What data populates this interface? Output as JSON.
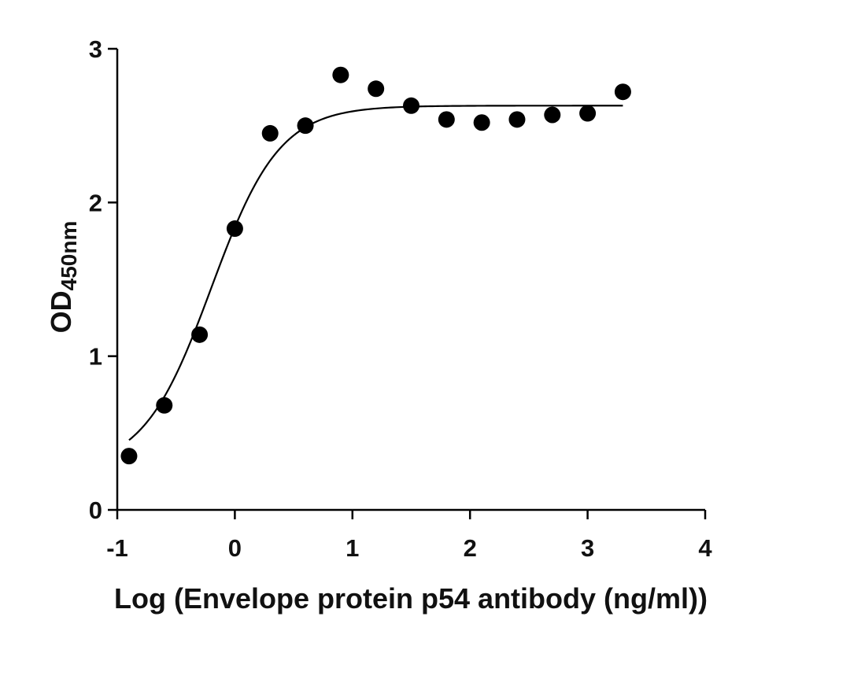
{
  "chart_data": {
    "type": "scatter",
    "xlabel": "Log (Envelope protein p54 antibody (ng/ml))",
    "ylabel_main": "OD",
    "ylabel_sub": "450nm",
    "xlim": [
      -1,
      4
    ],
    "ylim": [
      0,
      3
    ],
    "x_ticks": [
      "-1",
      "0",
      "1",
      "2",
      "3",
      "4"
    ],
    "y_ticks": [
      "0",
      "1",
      "2",
      "3"
    ],
    "grid": false,
    "legend": false,
    "series": [
      {
        "points": [
          {
            "x": -0.9,
            "y": 0.35
          },
          {
            "x": -0.6,
            "y": 0.68
          },
          {
            "x": -0.3,
            "y": 1.14
          },
          {
            "x": 0.0,
            "y": 1.83
          },
          {
            "x": 0.3,
            "y": 2.45
          },
          {
            "x": 0.6,
            "y": 2.5
          },
          {
            "x": 0.9,
            "y": 2.83
          },
          {
            "x": 1.2,
            "y": 2.74
          },
          {
            "x": 1.5,
            "y": 2.63
          },
          {
            "x": 1.8,
            "y": 2.54
          },
          {
            "x": 2.1,
            "y": 2.52
          },
          {
            "x": 2.4,
            "y": 2.54
          },
          {
            "x": 2.7,
            "y": 2.57
          },
          {
            "x": 3.0,
            "y": 2.58
          },
          {
            "x": 3.3,
            "y": 2.72
          }
        ],
        "fit": {
          "model": "sigmoidal",
          "bottom": 0.26,
          "top": 2.63,
          "logEC50": -0.2,
          "hill": 1.5,
          "x_range": [
            -0.9,
            3.3
          ]
        },
        "color": "#000000"
      }
    ]
  }
}
